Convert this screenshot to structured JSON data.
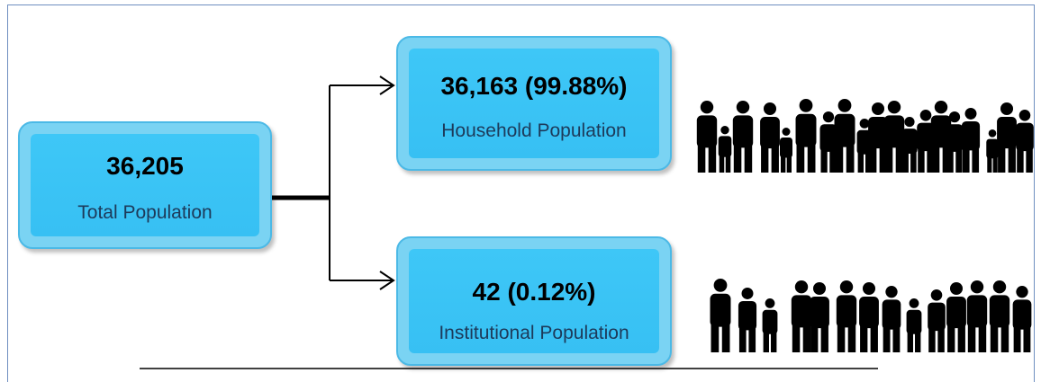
{
  "nodes": [
    {
      "value": "36,205",
      "label": "Total Population"
    },
    {
      "value": "36,163 (99.88%)",
      "label": "Household Population"
    },
    {
      "value": "42 (0.12%)",
      "label": "Institutional Population"
    }
  ]
}
